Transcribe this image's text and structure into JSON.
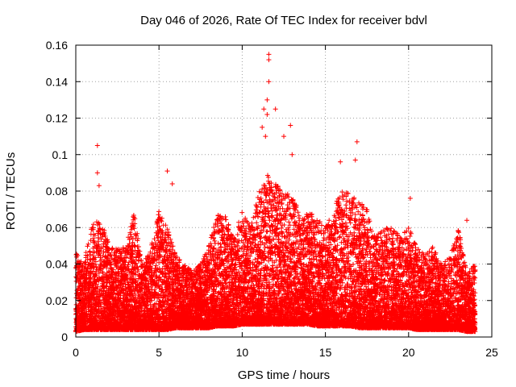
{
  "chart_data": {
    "type": "scatter",
    "title": "Day 046 of 2026, Rate Of TEC Index for receiver bdvl",
    "xlabel": "GPS time / hours",
    "ylabel": "ROTI / TECUs",
    "xlim": [
      0,
      25
    ],
    "ylim": [
      0,
      0.16
    ],
    "xticks": [
      "0",
      "5",
      "10",
      "15",
      "20",
      "25"
    ],
    "yticks": [
      "0",
      "0.02",
      "0.04",
      "0.06",
      "0.08",
      "0.1",
      "0.12",
      "0.14",
      "0.16"
    ],
    "grid": true,
    "marker": "plus",
    "color": "#ff0000",
    "envelope": {
      "x": [
        0.0,
        0.5,
        1.0,
        1.5,
        2.0,
        2.5,
        3.0,
        3.5,
        4.0,
        4.5,
        5.0,
        5.5,
        6.0,
        6.5,
        7.0,
        7.5,
        8.0,
        8.5,
        9.0,
        9.5,
        10.0,
        10.5,
        11.0,
        11.5,
        12.0,
        12.5,
        13.0,
        13.5,
        14.0,
        14.5,
        15.0,
        15.5,
        16.0,
        16.5,
        17.0,
        17.5,
        18.0,
        18.5,
        19.0,
        19.5,
        20.0,
        20.5,
        21.0,
        21.5,
        22.0,
        22.5,
        23.0,
        23.5,
        24.0
      ],
      "upper": [
        0.046,
        0.042,
        0.062,
        0.066,
        0.05,
        0.048,
        0.05,
        0.068,
        0.04,
        0.048,
        0.07,
        0.06,
        0.045,
        0.04,
        0.036,
        0.04,
        0.05,
        0.068,
        0.066,
        0.055,
        0.07,
        0.06,
        0.08,
        0.09,
        0.085,
        0.078,
        0.08,
        0.065,
        0.07,
        0.065,
        0.06,
        0.07,
        0.085,
        0.078,
        0.075,
        0.07,
        0.055,
        0.06,
        0.06,
        0.055,
        0.06,
        0.05,
        0.045,
        0.05,
        0.04,
        0.045,
        0.06,
        0.035,
        0.04
      ],
      "lower": [
        0.003,
        0.004,
        0.004,
        0.004,
        0.004,
        0.004,
        0.004,
        0.004,
        0.004,
        0.004,
        0.004,
        0.004,
        0.005,
        0.005,
        0.005,
        0.005,
        0.005,
        0.006,
        0.006,
        0.006,
        0.007,
        0.007,
        0.007,
        0.007,
        0.007,
        0.007,
        0.007,
        0.007,
        0.007,
        0.006,
        0.006,
        0.006,
        0.006,
        0.006,
        0.005,
        0.005,
        0.005,
        0.005,
        0.005,
        0.005,
        0.005,
        0.004,
        0.004,
        0.004,
        0.004,
        0.004,
        0.004,
        0.003,
        0.003
      ]
    },
    "notable_points": [
      {
        "x": 1.3,
        "y": 0.105
      },
      {
        "x": 1.3,
        "y": 0.09
      },
      {
        "x": 1.4,
        "y": 0.083
      },
      {
        "x": 5.5,
        "y": 0.091
      },
      {
        "x": 5.8,
        "y": 0.084
      },
      {
        "x": 11.6,
        "y": 0.155
      },
      {
        "x": 11.6,
        "y": 0.152
      },
      {
        "x": 11.6,
        "y": 0.14
      },
      {
        "x": 11.5,
        "y": 0.13
      },
      {
        "x": 11.5,
        "y": 0.122
      },
      {
        "x": 11.3,
        "y": 0.125
      },
      {
        "x": 11.2,
        "y": 0.115
      },
      {
        "x": 11.4,
        "y": 0.11
      },
      {
        "x": 12.0,
        "y": 0.125
      },
      {
        "x": 12.5,
        "y": 0.11
      },
      {
        "x": 12.9,
        "y": 0.116
      },
      {
        "x": 13.0,
        "y": 0.1
      },
      {
        "x": 16.9,
        "y": 0.107
      },
      {
        "x": 16.8,
        "y": 0.097
      },
      {
        "x": 15.9,
        "y": 0.096
      },
      {
        "x": 20.1,
        "y": 0.076
      },
      {
        "x": 23.5,
        "y": 0.064
      }
    ]
  }
}
